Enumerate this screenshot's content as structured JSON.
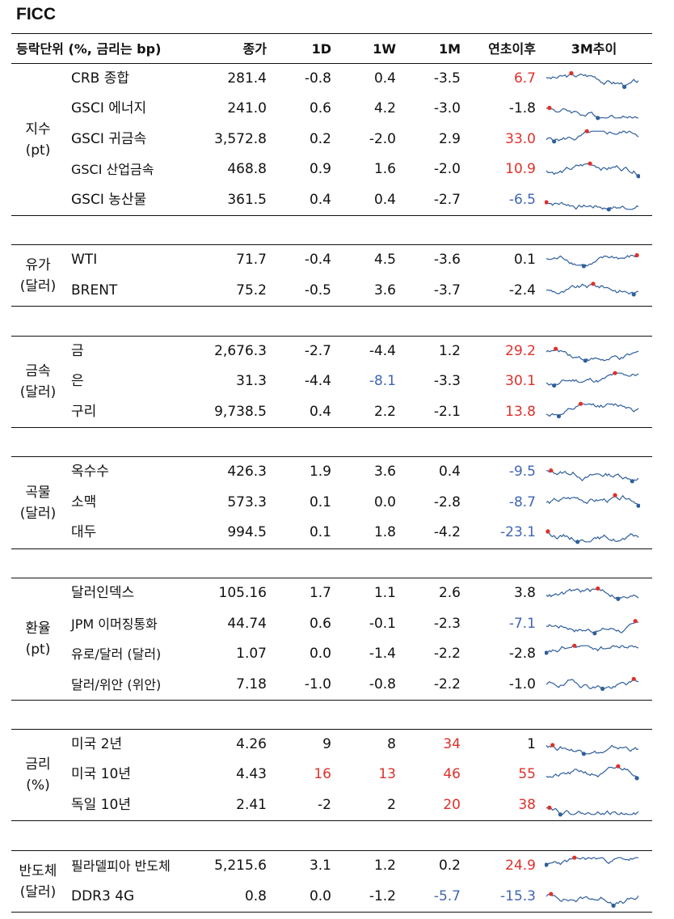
{
  "title": "FICC",
  "colors": {
    "red": "#e0302a",
    "blue": "#3f65b3",
    "line": "#2f5f9c",
    "text": "#111111"
  },
  "headers": {
    "label": "등락단위 (%, 금리는 bp)",
    "close": "종가",
    "d1": "1D",
    "w1": "1W",
    "m1": "1M",
    "ytd": "연초이후",
    "trend": "3M추이"
  },
  "groups": [
    {
      "label": [
        "지수",
        "(pt)"
      ],
      "rows": [
        {
          "name": "CRB 종합",
          "close": "281.4",
          "d1": "-0.8",
          "w1": "0.4",
          "m1": "-3.5",
          "ytd": "6.7",
          "styles": [
            "",
            "",
            "",
            "",
            "pos"
          ]
        },
        {
          "name": "GSCI 에너지",
          "close": "241.0",
          "d1": "0.6",
          "w1": "4.2",
          "m1": "-3.0",
          "ytd": "-1.8",
          "styles": [
            "",
            "",
            "",
            "",
            ""
          ]
        },
        {
          "name": "GSCI 귀금속",
          "close": "3,572.8",
          "d1": "0.2",
          "w1": "-2.0",
          "m1": "2.9",
          "ytd": "33.0",
          "styles": [
            "",
            "",
            "",
            "",
            "pos"
          ]
        },
        {
          "name": "GSCI 산업금속",
          "close": "468.8",
          "d1": "0.9",
          "w1": "1.6",
          "m1": "-2.0",
          "ytd": "10.9",
          "styles": [
            "",
            "",
            "",
            "",
            "pos"
          ]
        },
        {
          "name": "GSCI 농산물",
          "close": "361.5",
          "d1": "0.4",
          "w1": "0.4",
          "m1": "-2.7",
          "ytd": "-6.5",
          "styles": [
            "",
            "",
            "",
            "",
            "neg"
          ]
        }
      ]
    },
    {
      "label": [
        "유가",
        "(달러)"
      ],
      "rows": [
        {
          "name": "WTI",
          "close": "71.7",
          "d1": "-0.4",
          "w1": "4.5",
          "m1": "-3.6",
          "ytd": "0.1",
          "styles": [
            "",
            "",
            "",
            "",
            ""
          ]
        },
        {
          "name": "BRENT",
          "close": "75.2",
          "d1": "-0.5",
          "w1": "3.6",
          "m1": "-3.7",
          "ytd": "-2.4",
          "styles": [
            "",
            "",
            "",
            "",
            ""
          ]
        }
      ]
    },
    {
      "label": [
        "금속",
        "(달러)"
      ],
      "rows": [
        {
          "name": "금",
          "close": "2,676.3",
          "d1": "-2.7",
          "w1": "-4.4",
          "m1": "1.2",
          "ytd": "29.2",
          "styles": [
            "",
            "",
            "",
            "",
            "pos"
          ]
        },
        {
          "name": "은",
          "close": "31.3",
          "d1": "-4.4",
          "w1": "-8.1",
          "m1": "-3.3",
          "ytd": "30.1",
          "styles": [
            "",
            "",
            "neg",
            "",
            "pos"
          ]
        },
        {
          "name": "구리",
          "close": "9,738.5",
          "d1": "0.4",
          "w1": "2.2",
          "m1": "-2.1",
          "ytd": "13.8",
          "styles": [
            "",
            "",
            "",
            "",
            "pos"
          ]
        }
      ]
    },
    {
      "label": [
        "곡물",
        "(달러)"
      ],
      "rows": [
        {
          "name": "옥수수",
          "close": "426.3",
          "d1": "1.9",
          "w1": "3.6",
          "m1": "0.4",
          "ytd": "-9.5",
          "styles": [
            "",
            "",
            "",
            "",
            "neg"
          ]
        },
        {
          "name": "소맥",
          "close": "573.3",
          "d1": "0.1",
          "w1": "0.0",
          "m1": "-2.8",
          "ytd": "-8.7",
          "styles": [
            "",
            "",
            "",
            "",
            "neg"
          ]
        },
        {
          "name": "대두",
          "close": "994.5",
          "d1": "0.1",
          "w1": "1.8",
          "m1": "-4.2",
          "ytd": "-23.1",
          "styles": [
            "",
            "",
            "",
            "",
            "neg"
          ]
        }
      ]
    },
    {
      "label": [
        "환율",
        "(pt)"
      ],
      "rows": [
        {
          "name": "달러인덱스",
          "close": "105.16",
          "d1": "1.7",
          "w1": "1.1",
          "m1": "2.6",
          "ytd": "3.8",
          "styles": [
            "",
            "",
            "",
            "",
            ""
          ]
        },
        {
          "name": "JPM 이머징통화",
          "close": "44.74",
          "d1": "0.6",
          "w1": "-0.1",
          "m1": "-2.3",
          "ytd": "-7.1",
          "styles": [
            "",
            "",
            "",
            "",
            "neg"
          ]
        },
        {
          "name": "유로/달러 (달러)",
          "close": "1.07",
          "d1": "0.0",
          "w1": "-1.4",
          "m1": "-2.2",
          "ytd": "-2.8",
          "styles": [
            "",
            "",
            "",
            "",
            ""
          ]
        },
        {
          "name": "달러/위안 (위안)",
          "close": "7.18",
          "d1": "-1.0",
          "w1": "-0.8",
          "m1": "-2.2",
          "ytd": "-1.0",
          "styles": [
            "",
            "",
            "",
            "",
            ""
          ]
        }
      ]
    },
    {
      "label": [
        "금리",
        "(%)"
      ],
      "rows": [
        {
          "name": "미국 2년",
          "close": "4.26",
          "d1": "9",
          "w1": "8",
          "m1": "34",
          "ytd": "1",
          "styles": [
            "",
            "",
            "",
            "pos",
            ""
          ]
        },
        {
          "name": "미국 10년",
          "close": "4.43",
          "d1": "16",
          "w1": "13",
          "m1": "46",
          "ytd": "55",
          "styles": [
            "",
            "pos",
            "pos",
            "pos",
            "pos"
          ]
        },
        {
          "name": "독일 10년",
          "close": "2.41",
          "d1": "-2",
          "w1": "2",
          "m1": "20",
          "ytd": "38",
          "styles": [
            "",
            "",
            "",
            "pos",
            "pos"
          ]
        }
      ]
    },
    {
      "label": [
        "반도체",
        "(달러)"
      ],
      "rows": [
        {
          "name": "필라델피아 반도체",
          "close": "5,215.6",
          "d1": "3.1",
          "w1": "1.2",
          "m1": "0.2",
          "ytd": "24.9",
          "styles": [
            "",
            "",
            "",
            "",
            "pos"
          ]
        },
        {
          "name": "DDR3 4G",
          "close": "0.8",
          "d1": "0.0",
          "w1": "-1.2",
          "m1": "-5.7",
          "ytd": "-15.3",
          "styles": [
            "",
            "",
            "",
            "neg",
            "neg"
          ]
        }
      ]
    }
  ]
}
